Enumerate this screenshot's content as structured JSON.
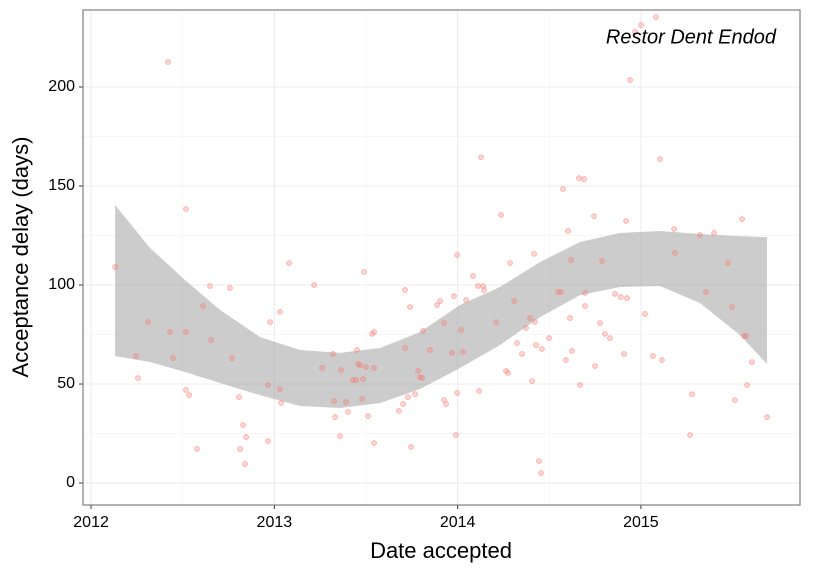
{
  "chart_data": {
    "type": "scatter",
    "annotation": "Restor Dent Endod",
    "x_label": "Date accepted",
    "y_label": "Acceptance delay (days)",
    "xlim": [
      2011.956,
      2015.868
    ],
    "ylim": [
      -11.1,
      238.9
    ],
    "xticks": [
      2012,
      2013,
      2014,
      2015
    ],
    "yticks": [
      0,
      50,
      100,
      150,
      200
    ],
    "grid": true,
    "points": {
      "color": "#f8766d",
      "x": [
        2012.131,
        2012.245,
        2012.256,
        2012.311,
        2012.42,
        2012.431,
        2012.447,
        2012.518,
        2012.518,
        2012.518,
        2012.535,
        2012.578,
        2012.611,
        2012.649,
        2012.655,
        2012.758,
        2012.769,
        2012.807,
        2012.813,
        2012.829,
        2012.846,
        2012.84,
        2012.966,
        2012.966,
        2012.977,
        2013.031,
        2013.031,
        2013.037,
        2013.08,
        2013.217,
        2013.26,
        2013.32,
        2013.326,
        2013.331,
        2013.358,
        2013.364,
        2013.391,
        2013.402,
        2013.429,
        2013.446,
        2013.451,
        2013.457,
        2013.468,
        2013.479,
        2013.484,
        2013.489,
        2013.5,
        2013.511,
        2013.533,
        2013.544,
        2013.544,
        2013.544,
        2013.68,
        2013.702,
        2013.713,
        2013.713,
        2013.729,
        2013.74,
        2013.746,
        2013.768,
        2013.784,
        2013.795,
        2013.806,
        2013.811,
        2013.849,
        2013.888,
        2013.904,
        2013.926,
        2013.926,
        2013.937,
        2013.969,
        2013.98,
        2013.991,
        2013.997,
        2013.997,
        2014.019,
        2014.029,
        2014.046,
        2014.084,
        2014.111,
        2014.117,
        2014.128,
        2014.139,
        2014.144,
        2014.21,
        2014.237,
        2014.264,
        2014.275,
        2014.286,
        2014.308,
        2014.324,
        2014.351,
        2014.373,
        2014.395,
        2014.406,
        2014.417,
        2014.422,
        2014.428,
        2014.444,
        2014.455,
        2014.46,
        2014.499,
        2014.548,
        2014.564,
        2014.575,
        2014.591,
        2014.602,
        2014.613,
        2014.619,
        2014.624,
        2014.662,
        2014.668,
        2014.69,
        2014.695,
        2014.695,
        2014.744,
        2014.75,
        2014.777,
        2014.788,
        2014.804,
        2014.831,
        2014.859,
        2014.891,
        2014.908,
        2014.919,
        2014.924,
        2014.941,
        2014.968,
        2015.001,
        2015.022,
        2015.066,
        2015.082,
        2015.104,
        2015.115,
        2015.181,
        2015.186,
        2015.268,
        2015.279,
        2015.322,
        2015.355,
        2015.399,
        2015.475,
        2015.497,
        2015.513,
        2015.552,
        2015.562,
        2015.573,
        2015.579,
        2015.606,
        2015.688
      ],
      "y": [
        109.1,
        64.1,
        53.0,
        81.3,
        212.6,
        76.3,
        63.1,
        138.4,
        76.3,
        47.0,
        44.4,
        17.2,
        89.4,
        99.5,
        72.2,
        98.5,
        63.1,
        43.4,
        17.2,
        29.3,
        23.2,
        9.6,
        21.2,
        49.5,
        81.3,
        86.4,
        47.5,
        40.4,
        111.1,
        100.0,
        58.1,
        65.2,
        41.4,
        33.3,
        23.7,
        57.1,
        40.9,
        35.9,
        52.0,
        52.0,
        67.2,
        60.1,
        59.6,
        42.4,
        52.5,
        106.6,
        58.6,
        33.8,
        75.3,
        76.3,
        20.2,
        58.1,
        36.4,
        39.9,
        68.2,
        97.5,
        43.4,
        88.9,
        18.2,
        44.9,
        56.6,
        53.5,
        53.0,
        76.8,
        67.2,
        89.9,
        91.9,
        80.8,
        41.9,
        39.9,
        65.7,
        94.4,
        24.2,
        115.2,
        45.5,
        77.3,
        66.2,
        92.4,
        104.5,
        99.5,
        46.5,
        164.6,
        99.5,
        97.5,
        81.3,
        135.4,
        56.6,
        55.6,
        111.1,
        91.9,
        70.7,
        65.2,
        78.3,
        83.3,
        51.5,
        115.7,
        81.3,
        69.7,
        11.1,
        5.1,
        67.7,
        73.2,
        96.5,
        96.5,
        148.5,
        62.1,
        127.3,
        83.3,
        112.6,
        66.7,
        154.0,
        49.5,
        153.5,
        89.4,
        96.0,
        134.8,
        59.1,
        80.8,
        112.1,
        75.3,
        73.2,
        95.5,
        93.9,
        65.2,
        132.3,
        93.4,
        203.5,
        227.8,
        231.3,
        85.4,
        64.1,
        235.4,
        163.6,
        62.1,
        128.3,
        116.2,
        24.2,
        44.9,
        125.3,
        96.5,
        126.3,
        111.1,
        88.9,
        41.9,
        133.3,
        74.2,
        74.2,
        49.5,
        61.1,
        33.3
      ]
    },
    "band": {
      "color": "#999999",
      "x": [
        2012.131,
        2012.322,
        2012.513,
        2012.704,
        2012.922,
        2013.14,
        2013.358,
        2013.577,
        2013.795,
        2014.013,
        2014.231,
        2014.45,
        2014.668,
        2014.886,
        2015.104,
        2015.322,
        2015.541,
        2015.688
      ],
      "lower": [
        64.1,
        61.1,
        56.1,
        50.5,
        44.4,
        38.9,
        37.9,
        40.4,
        47.5,
        58.1,
        69.7,
        83.8,
        94.9,
        99.0,
        99.5,
        90.9,
        74.7,
        60.1
      ],
      "upper": [
        140.4,
        118.7,
        102.5,
        87.4,
        73.7,
        67.2,
        65.7,
        68.2,
        76.3,
        89.9,
        99.0,
        111.6,
        121.7,
        126.3,
        127.3,
        125.8,
        124.7,
        124.2
      ]
    }
  }
}
